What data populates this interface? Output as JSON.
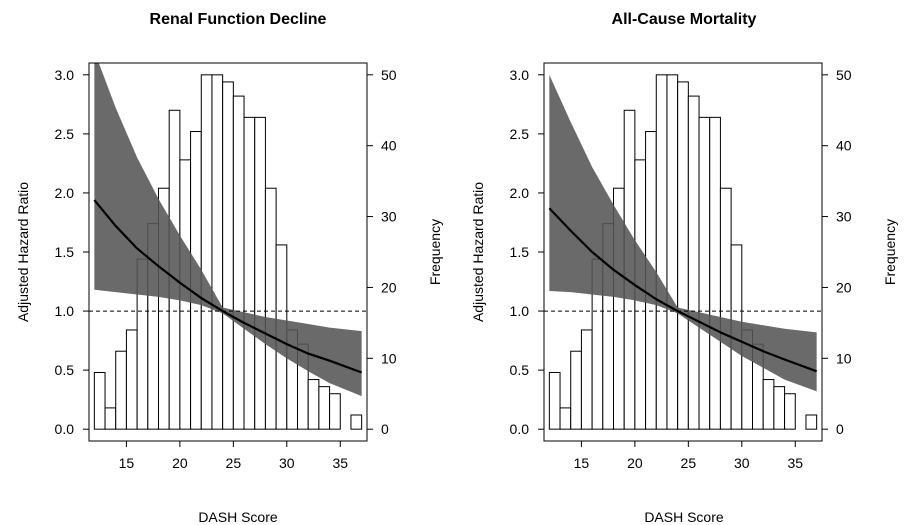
{
  "chart_data": [
    {
      "type": "line",
      "title": "Renal Function Decline",
      "xlabel": "DASH Score",
      "ylabel": "Adjusted Hazard Ratio",
      "y2label": "Frequency",
      "xlim": [
        11.5,
        37.5
      ],
      "ylim": [
        -0.1,
        3.1
      ],
      "y2lim": [
        -1.67,
        51.67
      ],
      "xticks": [
        15,
        20,
        25,
        30,
        35
      ],
      "yticks": [
        0.0,
        0.5,
        1.0,
        1.5,
        2.0,
        2.5,
        3.0
      ],
      "y2ticks": [
        0,
        10,
        20,
        30,
        40,
        50
      ],
      "reference_line": 1.0,
      "histogram": {
        "bin_starts": [
          12,
          13,
          14,
          15,
          16,
          17,
          18,
          19,
          20,
          21,
          22,
          23,
          24,
          25,
          26,
          27,
          28,
          29,
          30,
          31,
          32,
          33,
          34,
          35,
          36
        ],
        "bin_width": 1,
        "counts": [
          8,
          3,
          11,
          14,
          24,
          29,
          34,
          45,
          38,
          42,
          50,
          50,
          49,
          47,
          44,
          44,
          34,
          26,
          14,
          12,
          7,
          6,
          5,
          0,
          2
        ]
      },
      "series": [
        {
          "kind": "line",
          "x": [
            12,
            14,
            16,
            18,
            20,
            22,
            24,
            26,
            28,
            30,
            32,
            34,
            37
          ],
          "values": [
            1.94,
            1.72,
            1.53,
            1.38,
            1.24,
            1.11,
            1.0,
            0.9,
            0.81,
            0.72,
            0.64,
            0.58,
            0.48
          ]
        },
        {
          "kind": "band",
          "x": [
            12,
            14,
            16,
            18,
            20,
            22,
            24,
            26,
            28,
            30,
            32,
            34,
            37
          ],
          "upper": [
            3.2,
            2.72,
            2.3,
            1.95,
            1.64,
            1.35,
            1.03,
            0.99,
            0.95,
            0.92,
            0.89,
            0.86,
            0.83
          ],
          "lower": [
            1.18,
            1.16,
            1.14,
            1.12,
            1.09,
            1.05,
            0.98,
            0.85,
            0.72,
            0.6,
            0.49,
            0.39,
            0.28
          ]
        }
      ]
    },
    {
      "type": "line",
      "title": "All-Cause Mortality",
      "xlabel": "DASH Score",
      "ylabel": "Adjusted Hazard Ratio",
      "y2label": "Frequency",
      "xlim": [
        11.5,
        37.5
      ],
      "ylim": [
        -0.1,
        3.1
      ],
      "y2lim": [
        -1.67,
        51.67
      ],
      "xticks": [
        15,
        20,
        25,
        30,
        35
      ],
      "yticks": [
        0.0,
        0.5,
        1.0,
        1.5,
        2.0,
        2.5,
        3.0
      ],
      "y2ticks": [
        0,
        10,
        20,
        30,
        40,
        50
      ],
      "reference_line": 1.0,
      "histogram": {
        "bin_starts": [
          12,
          13,
          14,
          15,
          16,
          17,
          18,
          19,
          20,
          21,
          22,
          23,
          24,
          25,
          26,
          27,
          28,
          29,
          30,
          31,
          32,
          33,
          34,
          35,
          36
        ],
        "bin_width": 1,
        "counts": [
          8,
          3,
          11,
          14,
          24,
          29,
          34,
          45,
          38,
          42,
          50,
          50,
          49,
          47,
          44,
          44,
          34,
          26,
          14,
          12,
          7,
          6,
          5,
          0,
          2
        ]
      },
      "series": [
        {
          "kind": "line",
          "x": [
            12,
            14,
            16,
            18,
            20,
            22,
            24,
            26,
            28,
            30,
            32,
            34,
            37
          ],
          "values": [
            1.87,
            1.68,
            1.5,
            1.35,
            1.22,
            1.1,
            1.0,
            0.91,
            0.82,
            0.74,
            0.66,
            0.59,
            0.49
          ]
        },
        {
          "kind": "band",
          "x": [
            12,
            14,
            16,
            18,
            20,
            22,
            24,
            26,
            28,
            30,
            32,
            34,
            37
          ],
          "upper": [
            3.0,
            2.6,
            2.22,
            1.9,
            1.6,
            1.33,
            1.03,
            0.99,
            0.95,
            0.91,
            0.88,
            0.85,
            0.82
          ],
          "lower": [
            1.17,
            1.16,
            1.14,
            1.12,
            1.09,
            1.05,
            0.98,
            0.86,
            0.74,
            0.62,
            0.52,
            0.42,
            0.32
          ]
        }
      ]
    }
  ]
}
